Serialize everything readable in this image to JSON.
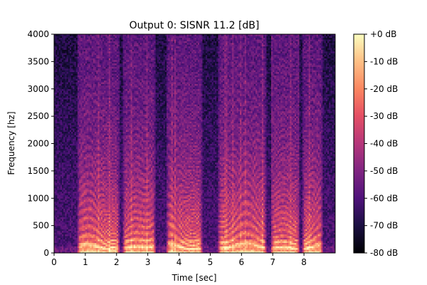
{
  "chart_data": {
    "type": "heatmap",
    "title": "Output 0: SISNR 11.2 [dB]",
    "xlabel": "Time [sec]",
    "ylabel": "Frequency [hz]",
    "xlim": [
      0,
      9
    ],
    "ylim": [
      0,
      4000
    ],
    "x_ticks": [
      "0",
      "1",
      "2",
      "3",
      "4",
      "5",
      "6",
      "7",
      "8"
    ],
    "y_ticks": [
      "0",
      "500",
      "1000",
      "1500",
      "2000",
      "2500",
      "3000",
      "3500",
      "4000"
    ],
    "colorbar": {
      "range_db": [
        -80,
        0
      ],
      "colormap": "magma",
      "ticks": [
        "+0 dB",
        "-10 dB",
        "-20 dB",
        "-30 dB",
        "-40 dB",
        "-50 dB",
        "-60 dB",
        "-70 dB",
        "-80 dB"
      ]
    },
    "speech_segments_sec": [
      [
        0.75,
        2.1
      ],
      [
        2.2,
        3.25
      ],
      [
        3.6,
        4.75
      ],
      [
        5.25,
        6.8
      ],
      [
        6.95,
        7.85
      ],
      [
        7.95,
        8.6
      ]
    ],
    "grid": false
  }
}
